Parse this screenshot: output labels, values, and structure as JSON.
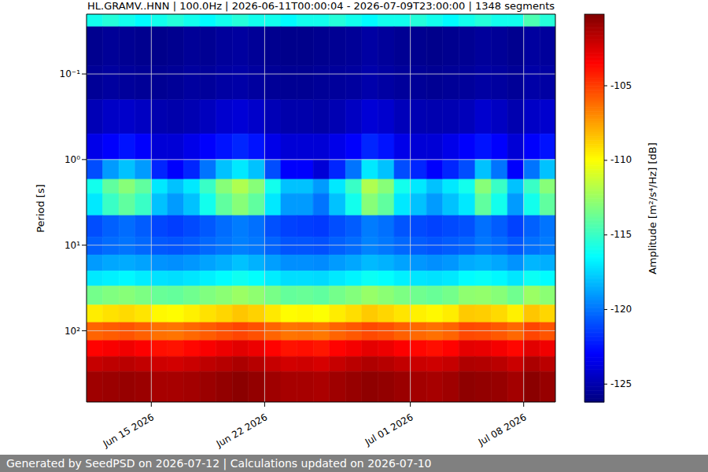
{
  "chart_data": {
    "type": "heatmap",
    "title": "HL.GRAMV..HNN | 100.0Hz | 2026-06-11T00:00:04 - 2026-07-09T23:00:00 | 1348 segments",
    "y_label": "Period [s]",
    "footer": "Generated by SeedPSD on 2026-07-12 | Calculations updated on 2026-07-10",
    "log": "y",
    "grid": true,
    "xlim": [
      "2026-06-11T00:00:04",
      "2026-07-09T23:00:00"
    ],
    "xticks": [
      {
        "value": "2026-06-15",
        "label": "Jun 15 2026"
      },
      {
        "value": "2026-06-22",
        "label": "Jun 22 2026"
      },
      {
        "value": "2026-07-01",
        "label": "Jul 01 2026"
      },
      {
        "value": "2026-07-08",
        "label": "Jul 08 2026"
      }
    ],
    "ylim": [
      0.02,
      680
    ],
    "yticks": [
      {
        "value": 0.1,
        "label": "10⁻¹"
      },
      {
        "value": 1,
        "label": "10⁰"
      },
      {
        "value": 10,
        "label": "10¹"
      },
      {
        "value": 100,
        "label": "10²"
      }
    ],
    "time_edges": [
      "2026-06-11T00:00:04",
      "2026-06-12",
      "2026-06-13",
      "2026-06-14",
      "2026-06-15",
      "2026-06-16",
      "2026-06-17",
      "2026-06-18",
      "2026-06-19",
      "2026-06-20",
      "2026-06-21",
      "2026-06-22",
      "2026-06-23",
      "2026-06-24",
      "2026-06-25",
      "2026-06-26",
      "2026-06-27",
      "2026-06-28",
      "2026-06-29",
      "2026-06-30",
      "2026-07-01",
      "2026-07-02",
      "2026-07-03",
      "2026-07-04",
      "2026-07-05",
      "2026-07-06",
      "2026-07-07",
      "2026-07-08",
      "2026-07-09",
      "2026-07-09T23:00:00"
    ],
    "period_edges": [
      0.02,
      0.028,
      0.08,
      0.2,
      0.5,
      1,
      1.7,
      2.5,
      4.5,
      8,
      13,
      20,
      30,
      50,
      80,
      130,
      200,
      300,
      680
    ],
    "cells": [
      [
        -116,
        -115.5,
        -116,
        -116.5,
        -116,
        -115.5,
        -116,
        -116.5,
        -116,
        -115.5,
        -116,
        -116,
        -116.5,
        -116,
        -116,
        -115.5,
        -116,
        -116.5,
        -116,
        -116,
        -115.5,
        -116,
        -116.5,
        -116,
        -115.5,
        -116,
        -116,
        -114.5,
        -115.5
      ],
      [
        -125.8,
        -125.6,
        -125.7,
        -125.8,
        -125.9,
        -125.8,
        -125.6,
        -125.7,
        -125.5,
        -125.4,
        -125.6,
        -125.8,
        -125.9,
        -125.9,
        -125.8,
        -125.7,
        -125.6,
        -125.3,
        -125.5,
        -125.7,
        -125.8,
        -125.9,
        -125.8,
        -125.7,
        -125.5,
        -125.6,
        -125.8,
        -125.4,
        -125.5
      ],
      [
        -125.6,
        -125.4,
        -125.5,
        -125.6,
        -125.7,
        -125.6,
        -125.4,
        -125.5,
        -125.3,
        -125.2,
        -125.4,
        -125.6,
        -125.7,
        -125.7,
        -125.6,
        -125.5,
        -125.4,
        -125.1,
        -125.3,
        -125.5,
        -125.6,
        -125.7,
        -125.6,
        -125.5,
        -125.3,
        -125.4,
        -125.6,
        -125.2,
        -125.3
      ],
      [
        -124.8,
        -124.4,
        -124.3,
        -124.5,
        -125.0,
        -125.1,
        -124.9,
        -124.6,
        -124.2,
        -124.0,
        -124.3,
        -124.8,
        -125.1,
        -125.1,
        -125.2,
        -124.9,
        -124.5,
        -124.0,
        -124.2,
        -124.7,
        -124.9,
        -125.0,
        -124.9,
        -124.7,
        -124.2,
        -124.5,
        -125.0,
        -124.4,
        -124.2
      ],
      [
        -123.5,
        -123,
        -122.5,
        -123,
        -124,
        -124,
        -123.5,
        -123,
        -122.5,
        -122,
        -122.5,
        -123.5,
        -124,
        -124,
        -124,
        -123.5,
        -123,
        -122,
        -122.5,
        -123.5,
        -124,
        -124,
        -123.5,
        -123,
        -122.5,
        -123,
        -124,
        -123,
        -122.5
      ],
      [
        -121,
        -119,
        -118,
        -119,
        -122,
        -123,
        -122,
        -120,
        -118,
        -117,
        -118,
        -121,
        -123,
        -123,
        -124,
        -122,
        -120,
        -117,
        -118,
        -121,
        -122,
        -123,
        -122,
        -121,
        -118,
        -120,
        -123,
        -120,
        -118
      ],
      [
        -116,
        -114,
        -113,
        -114,
        -117,
        -118,
        -117,
        -115,
        -113,
        -112,
        -113,
        -116,
        -118,
        -118,
        -119,
        -117,
        -115,
        -112,
        -113,
        -116,
        -117,
        -118,
        -117,
        -116,
        -113,
        -115,
        -118,
        -115,
        -113
      ],
      [
        -117,
        -115,
        -114,
        -115,
        -118,
        -119,
        -118,
        -116,
        -114,
        -113,
        -114,
        -117,
        -119,
        -119,
        -120,
        -118,
        -116,
        -113,
        -114,
        -117,
        -118,
        -119,
        -118,
        -117,
        -114,
        -116,
        -119,
        -116,
        -114
      ],
      [
        -121.0,
        -120.5,
        -120.2,
        -120.6,
        -121.2,
        -121.4,
        -121.1,
        -120.7,
        -120.2,
        -119.8,
        -120.1,
        -120.9,
        -121.3,
        -121.4,
        -121.5,
        -121.0,
        -120.6,
        -119.8,
        -120.1,
        -120.8,
        -121.1,
        -121.3,
        -121.1,
        -120.9,
        -120.1,
        -120.6,
        -121.3,
        -120.5,
        -120.0
      ],
      [
        -120.5,
        -120.2,
        -120.0,
        -120.3,
        -120.7,
        -120.8,
        -120.6,
        -120.3,
        -120.0,
        -119.7,
        -119.9,
        -120.4,
        -120.8,
        -120.8,
        -120.9,
        -120.5,
        -120.2,
        -119.6,
        -119.9,
        -120.3,
        -120.6,
        -120.8,
        -120.6,
        -120.4,
        -119.9,
        -120.2,
        -120.7,
        -120.1,
        -119.8
      ],
      [
        -119.0,
        -118.7,
        -118.6,
        -118.8,
        -119.2,
        -119.3,
        -119.1,
        -118.8,
        -118.5,
        -118.0,
        -118.4,
        -118.9,
        -119.3,
        -119.3,
        -119.4,
        -119.0,
        -118.7,
        -118.2,
        -118.4,
        -118.8,
        -119.1,
        -119.3,
        -119.1,
        -118.6,
        -118.4,
        -118.7,
        -119.2,
        -118.3,
        -118.5
      ],
      [
        -117.0,
        -116.8,
        -116.6,
        -116.9,
        -117.2,
        -117.3,
        -117.1,
        -116.8,
        -116.5,
        -116.1,
        -116.4,
        -116.9,
        -117.3,
        -117.3,
        -117.4,
        -117.0,
        -116.7,
        -116.2,
        -116.4,
        -116.8,
        -117.1,
        -117.2,
        -117.0,
        -116.5,
        -116.3,
        -116.6,
        -117.1,
        -116.2,
        -116.5
      ],
      [
        -113.5,
        -113.2,
        -113.0,
        -113.3,
        -113.8,
        -113.9,
        -113.6,
        -113.2,
        -112.9,
        -112.5,
        -112.8,
        -113.4,
        -113.9,
        -113.8,
        -114.0,
        -113.5,
        -113.1,
        -112.6,
        -112.9,
        -113.3,
        -113.6,
        -113.8,
        -113.5,
        -112.8,
        -112.7,
        -113.0,
        -113.6,
        -112.5,
        -112.9
      ],
      [
        -109.5,
        -109.2,
        -109.0,
        -109.3,
        -109.8,
        -109.9,
        -109.6,
        -109.2,
        -108.9,
        -108.5,
        -108.8,
        -109.4,
        -109.9,
        -109.8,
        -110.0,
        -109.5,
        -109.1,
        -108.6,
        -108.9,
        -109.3,
        -109.6,
        -109.8,
        -109.5,
        -108.6,
        -108.7,
        -109.0,
        -109.6,
        -108.5,
        -108.9
      ],
      [
        -106.0,
        -105.8,
        -105.6,
        -105.9,
        -106.3,
        -106.4,
        -106.1,
        -105.8,
        -105.5,
        -105.2,
        -105.5,
        -106.0,
        -106.4,
        -106.3,
        -106.5,
        -106.0,
        -105.7,
        -105.3,
        -105.5,
        -105.9,
        -106.1,
        -106.3,
        -106.0,
        -105.3,
        -105.4,
        -105.7,
        -106.1,
        -105.2,
        -105.6
      ],
      [
        -103.5,
        -103.3,
        -103.1,
        -103.4,
        -103.8,
        -103.9,
        -103.6,
        -103.3,
        -103.0,
        -102.7,
        -103.0,
        -103.5,
        -103.9,
        -103.8,
        -104.0,
        -103.5,
        -103.2,
        -102.8,
        -103.0,
        -103.4,
        -103.6,
        -103.8,
        -103.5,
        -102.8,
        -102.9,
        -103.2,
        -103.6,
        -102.7,
        -103.1
      ],
      [
        -102.0,
        -101.8,
        -101.7,
        -101.9,
        -102.2,
        -102.3,
        -102.1,
        -101.8,
        -101.6,
        -101.3,
        -101.6,
        -102.0,
        -102.3,
        -102.2,
        -102.4,
        -102.0,
        -101.7,
        -101.4,
        -101.6,
        -101.9,
        -102.1,
        -102.2,
        -102.0,
        -101.4,
        -101.5,
        -101.7,
        -102.1,
        -101.3,
        -101.7
      ],
      [
        -101.0,
        -100.9,
        -100.8,
        -100.9,
        -101.2,
        -101.2,
        -101.1,
        -100.9,
        -100.7,
        -100.5,
        -100.7,
        -101.0,
        -101.2,
        -101.2,
        -101.3,
        -101.0,
        -100.8,
        -100.6,
        -100.7,
        -100.9,
        -101.1,
        -101.2,
        -101.0,
        -100.6,
        -100.7,
        -100.8,
        -101.1,
        -100.5,
        -100.8
      ]
    ],
    "colorbar": {
      "range": [
        -126.2,
        -100.2
      ],
      "ticks": [
        -105,
        -110,
        -115,
        -120,
        -125
      ],
      "label": "Amplitude [m²/s⁴/Hz] [dB]"
    }
  }
}
